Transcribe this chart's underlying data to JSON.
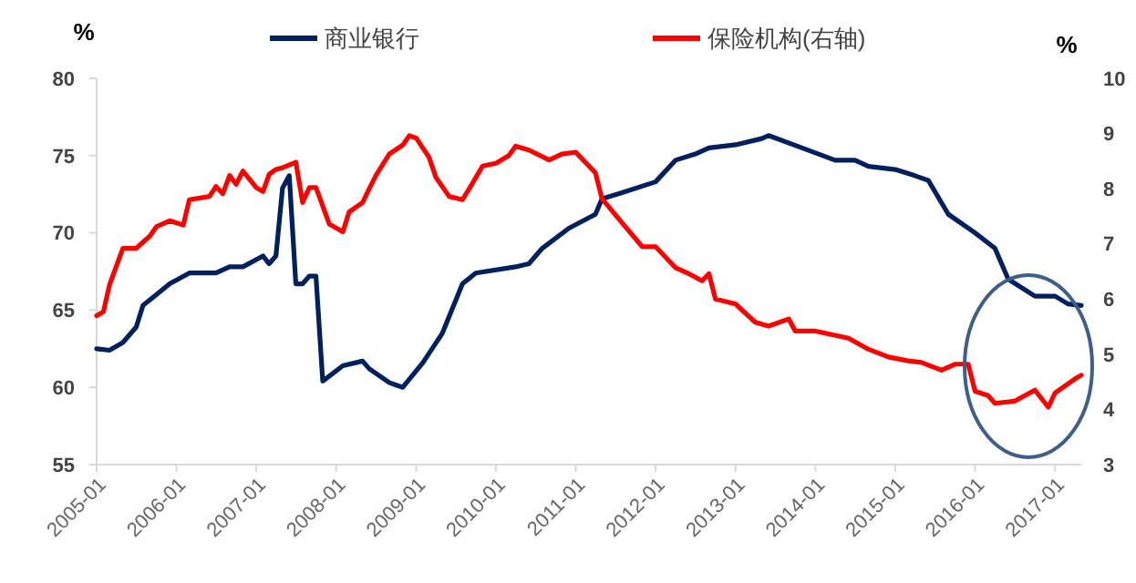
{
  "chart_data": {
    "type": "line",
    "ylabel": "%",
    "y2label": "%",
    "legend": "top",
    "grid": false,
    "marker": "none",
    "line_style": "solid",
    "xlim": [
      "2005-01",
      "2017-05"
    ],
    "xticks": [
      "2005-01",
      "2006-01",
      "2007-01",
      "2008-01",
      "2009-01",
      "2010-01",
      "2011-01",
      "2012-01",
      "2013-01",
      "2014-01",
      "2015-01",
      "2016-01",
      "2017-01"
    ],
    "ylim": [
      55,
      80
    ],
    "yticks": [
      55,
      60,
      65,
      70,
      75,
      80
    ],
    "y2lim": [
      3,
      10
    ],
    "y2ticks": [
      3,
      4,
      5,
      6,
      7,
      8,
      9,
      10
    ],
    "series": [
      {
        "name": "商业银行",
        "color": "#002060",
        "x": [
          "2005-01",
          "2005-03",
          "2005-05",
          "2005-07",
          "2005-08",
          "2005-10",
          "2005-12",
          "2006-03",
          "2006-07",
          "2006-09",
          "2006-11",
          "2007-02",
          "2007-03",
          "2007-04",
          "2007-05",
          "2007-06",
          "2007-07",
          "2007-08",
          "2007-09",
          "2007-10",
          "2007-11",
          "2008-02",
          "2008-05",
          "2008-06",
          "2008-09",
          "2008-11",
          "2009-02",
          "2009-05",
          "2009-08",
          "2009-10",
          "2010-04",
          "2010-06",
          "2010-08",
          "2010-12",
          "2011-04",
          "2011-05",
          "2011-08",
          "2012-01",
          "2012-04",
          "2012-07",
          "2012-09",
          "2013-01",
          "2013-05",
          "2013-06",
          "2013-11",
          "2014-04",
          "2014-07",
          "2014-09",
          "2015-01",
          "2015-04",
          "2015-06",
          "2015-09",
          "2016-01",
          "2016-04",
          "2016-06",
          "2016-10",
          "2017-01",
          "2017-03",
          "2017-05"
        ],
        "values": [
          62.5,
          62.4,
          62.9,
          63.9,
          65.3,
          66.0,
          66.7,
          67.4,
          67.4,
          67.8,
          67.8,
          68.5,
          68.0,
          68.5,
          72.9,
          73.7,
          66.7,
          66.7,
          67.2,
          67.2,
          60.4,
          61.4,
          61.7,
          61.2,
          60.3,
          60.0,
          61.6,
          63.5,
          66.7,
          67.4,
          67.8,
          68.0,
          69.0,
          70.3,
          71.2,
          72.2,
          72.6,
          73.3,
          74.7,
          75.1,
          75.5,
          75.7,
          76.1,
          76.3,
          75.5,
          74.7,
          74.7,
          74.3,
          74.1,
          73.7,
          73.4,
          71.2,
          70.0,
          69.0,
          67.0,
          65.9,
          65.9,
          65.4,
          65.3
        ]
      },
      {
        "name": "保险机构(右轴)",
        "color": "#ff0000",
        "axis": "y2",
        "x": [
          "2005-01",
          "2005-02",
          "2005-03",
          "2005-05",
          "2005-07",
          "2005-09",
          "2005-10",
          "2005-12",
          "2006-02",
          "2006-03",
          "2006-06",
          "2006-07",
          "2006-08",
          "2006-09",
          "2006-10",
          "2006-11",
          "2007-01",
          "2007-02",
          "2007-03",
          "2007-04",
          "2007-05",
          "2007-07",
          "2007-08",
          "2007-09",
          "2007-10",
          "2007-12",
          "2008-02",
          "2008-03",
          "2008-05",
          "2008-06",
          "2008-07",
          "2008-09",
          "2008-11",
          "2008-12",
          "2009-01",
          "2009-03",
          "2009-04",
          "2009-06",
          "2009-08",
          "2009-09",
          "2009-11",
          "2010-01",
          "2010-03",
          "2010-04",
          "2010-06",
          "2010-09",
          "2010-11",
          "2011-01",
          "2011-04",
          "2011-05",
          "2011-08",
          "2011-11",
          "2012-01",
          "2012-04",
          "2012-06",
          "2012-08",
          "2012-09",
          "2012-10",
          "2013-01",
          "2013-04",
          "2013-06",
          "2013-09",
          "2013-10",
          "2014-01",
          "2014-06",
          "2014-09",
          "2014-12",
          "2015-03",
          "2015-05",
          "2015-08",
          "2015-10",
          "2015-12",
          "2016-01",
          "2016-03",
          "2016-04",
          "2016-07",
          "2016-10",
          "2016-12",
          "2017-01",
          "2017-04",
          "2017-05"
        ],
        "values": [
          5.7,
          5.77,
          6.26,
          6.92,
          6.92,
          7.14,
          7.31,
          7.42,
          7.34,
          7.8,
          7.86,
          8.04,
          7.91,
          8.24,
          8.08,
          8.32,
          8.02,
          7.95,
          8.26,
          8.35,
          8.38,
          8.48,
          7.75,
          8.02,
          8.02,
          7.36,
          7.22,
          7.58,
          7.75,
          8.0,
          8.24,
          8.63,
          8.79,
          8.96,
          8.92,
          8.57,
          8.21,
          7.86,
          7.8,
          8.0,
          8.41,
          8.46,
          8.6,
          8.77,
          8.7,
          8.52,
          8.63,
          8.66,
          8.29,
          7.82,
          7.38,
          6.95,
          6.95,
          6.57,
          6.46,
          6.33,
          6.46,
          6.0,
          5.91,
          5.58,
          5.51,
          5.64,
          5.42,
          5.42,
          5.29,
          5.09,
          4.95,
          4.88,
          4.85,
          4.71,
          4.82,
          4.82,
          4.33,
          4.25,
          4.11,
          4.15,
          4.35,
          4.04,
          4.3,
          4.55,
          4.62
        ]
      }
    ]
  }
}
